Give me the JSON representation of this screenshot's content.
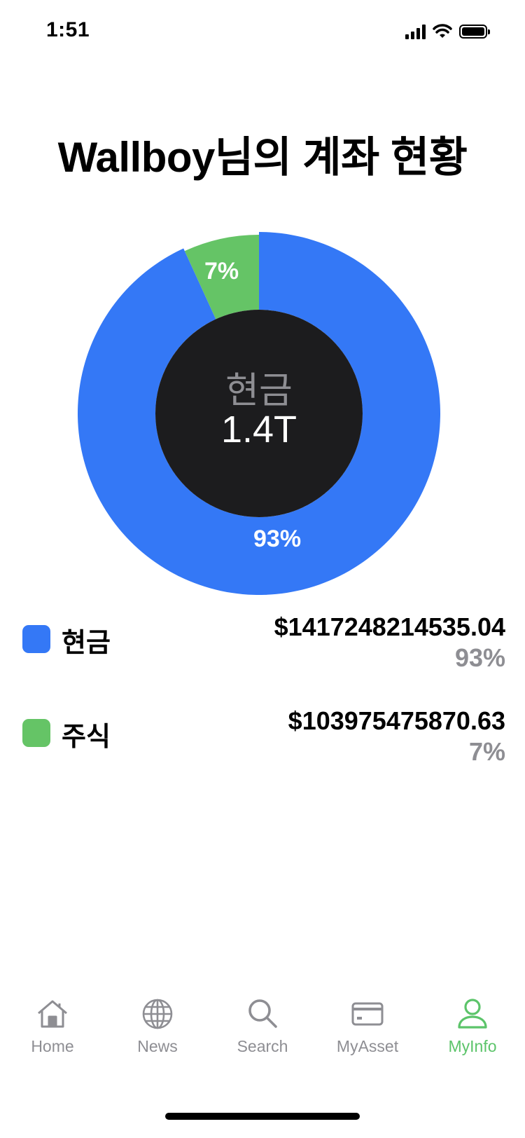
{
  "status_bar": {
    "time": "1:51"
  },
  "page": {
    "title": "Wallboy님의 계좌 현황"
  },
  "chart_data": {
    "type": "pie",
    "donut": true,
    "center_label": "현금",
    "center_value": "1.4T",
    "slices": [
      {
        "name": "현금",
        "value": 1417248214535.04,
        "percent": 93,
        "label": "93%",
        "color": "#3478f6"
      },
      {
        "name": "주식",
        "value": 103975475870.63,
        "percent": 7,
        "label": "7%",
        "color": "#65c466"
      }
    ]
  },
  "legend": [
    {
      "name": "현금",
      "amount": "$1417248214535.04",
      "percent": "93%",
      "color": "#3478f6"
    },
    {
      "name": "주식",
      "amount": "$103975475870.63",
      "percent": "7%",
      "color": "#65c466"
    }
  ],
  "tab_bar": {
    "active_color": "#5cc46a",
    "inactive_color": "#8e8e93",
    "tabs": [
      {
        "label": "Home",
        "icon": "house-icon",
        "active": false
      },
      {
        "label": "News",
        "icon": "globe-icon",
        "active": false
      },
      {
        "label": "Search",
        "icon": "magnifier-icon",
        "active": false
      },
      {
        "label": "MyAsset",
        "icon": "card-icon",
        "active": false
      },
      {
        "label": "MyInfo",
        "icon": "person-icon",
        "active": true
      }
    ]
  }
}
